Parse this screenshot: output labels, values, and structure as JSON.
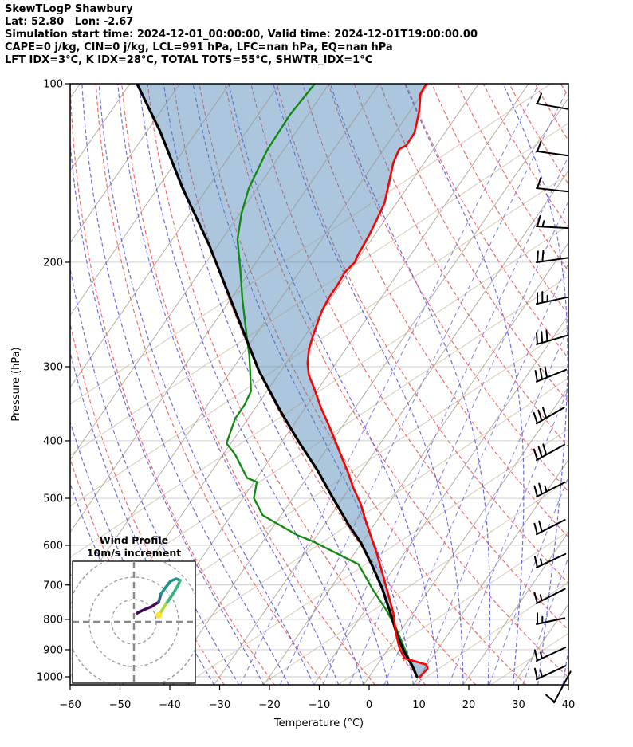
{
  "header": {
    "line1": "SkewTLogP Shawbury",
    "line2": "Lat: 52.80   Lon: -2.67",
    "line3": "Simulation start time: 2024-12-01_00:00:00, Valid time: 2024-12-01T19:00:00.00",
    "line4": "CAPE=0 j/kg, CIN=0 j/kg, LCL=991 hPa, LFC=nan hPa, EQ=nan hPa",
    "line5": "LFT IDX=3°C, K IDX=28°C, TOTAL TOTS=55°C, SHWTR_IDX=1°C"
  },
  "chart_data": {
    "type": "skewt-logp",
    "xlabel": "Temperature (°C)",
    "ylabel": "Pressure (hPa)",
    "x_ticks": [
      -60,
      -50,
      -40,
      -30,
      -20,
      -10,
      0,
      10,
      20,
      30,
      40
    ],
    "y_ticks": [
      100,
      200,
      300,
      400,
      500,
      600,
      700,
      800,
      900,
      1000
    ],
    "xlim": [
      -60,
      40
    ],
    "p_top": 100,
    "p_bottom": 1032,
    "skew_c_per_decade": 82,
    "temperature_profile": [
      [
        100,
        -70.5
      ],
      [
        104,
        -70.3
      ],
      [
        111,
        -68.2
      ],
      [
        121,
        -66.1
      ],
      [
        127,
        -66
      ],
      [
        129,
        -66.9
      ],
      [
        136,
        -66.2
      ],
      [
        150,
        -63.8
      ],
      [
        159,
        -62.4
      ],
      [
        169,
        -61.7
      ],
      [
        179,
        -61.1
      ],
      [
        196,
        -60.5
      ],
      [
        200,
        -60.2
      ],
      [
        208,
        -60.8
      ],
      [
        219,
        -60.5
      ],
      [
        229,
        -60.5
      ],
      [
        241,
        -60.1
      ],
      [
        253,
        -59.3
      ],
      [
        265,
        -58.5
      ],
      [
        280,
        -57.4
      ],
      [
        296,
        -55.7
      ],
      [
        310,
        -53.8
      ],
      [
        327,
        -50.8
      ],
      [
        351,
        -47
      ],
      [
        377,
        -42.8
      ],
      [
        401,
        -39.3
      ],
      [
        429,
        -35.5
      ],
      [
        453,
        -32.4
      ],
      [
        481,
        -29.2
      ],
      [
        510,
        -25.7
      ],
      [
        542,
        -22.6
      ],
      [
        577,
        -19.3
      ],
      [
        622,
        -15.3
      ],
      [
        721,
        -7.9
      ],
      [
        780,
        -4
      ],
      [
        845,
        -0.6
      ],
      [
        896,
        2.2
      ],
      [
        931,
        4.6
      ],
      [
        942,
        7.2
      ],
      [
        954,
        9.8
      ],
      [
        968,
        10.6
      ],
      [
        983,
        10.4
      ],
      [
        1000,
        10.2
      ]
    ],
    "dewpoint_profile": [
      [
        100,
        -92.9
      ],
      [
        113,
        -93.6
      ],
      [
        129,
        -93.3
      ],
      [
        150,
        -91.7
      ],
      [
        166,
        -89.6
      ],
      [
        183,
        -86.9
      ],
      [
        204,
        -82.5
      ],
      [
        231,
        -77.6
      ],
      [
        265,
        -71.9
      ],
      [
        287,
        -68.5
      ],
      [
        300,
        -66.8
      ],
      [
        330,
        -63.2
      ],
      [
        348,
        -62.6
      ],
      [
        367,
        -62.6
      ],
      [
        404,
        -60.9
      ],
      [
        422,
        -57.6
      ],
      [
        462,
        -52
      ],
      [
        469,
        -49.5
      ],
      [
        500,
        -47.8
      ],
      [
        534,
        -43.7
      ],
      [
        551,
        -39.8
      ],
      [
        577,
        -34
      ],
      [
        591,
        -30
      ],
      [
        646,
        -17.7
      ],
      [
        713,
        -11.3
      ],
      [
        768,
        -6.1
      ],
      [
        825,
        -1.5
      ],
      [
        871,
        1.6
      ],
      [
        931,
        5.4
      ],
      [
        974,
        8.1
      ],
      [
        1000,
        9.6
      ]
    ],
    "parcel_profile": [
      [
        100,
        -128.6
      ],
      [
        120,
        -117.5
      ],
      [
        150,
        -105
      ],
      [
        187,
        -91.8
      ],
      [
        238,
        -78.3
      ],
      [
        305,
        -64.4
      ],
      [
        356,
        -54.6
      ],
      [
        401,
        -46.7
      ],
      [
        448,
        -39
      ],
      [
        497,
        -32.3
      ],
      [
        552,
        -25.4
      ],
      [
        595,
        -20.1
      ],
      [
        650,
        -14.7
      ],
      [
        708,
        -9.7
      ],
      [
        780,
        -4.6
      ],
      [
        848,
        -0.3
      ],
      [
        908,
        3.6
      ],
      [
        959,
        7.2
      ],
      [
        1000,
        9.6
      ]
    ],
    "shading": {
      "between": [
        "parcel_profile",
        "temperature_profile"
      ]
    },
    "background": {
      "isotherms": {
        "start": -170,
        "end": 40,
        "step": 10
      },
      "dry_adiabats_theta_k": {
        "start": 213,
        "end": 453,
        "step": 10
      },
      "moist_adiabats_start_c": {
        "start": -40,
        "end": 40,
        "step": 5
      },
      "mixing_ratios_g_kg": [
        0.5,
        1,
        2,
        3,
        5,
        8,
        12,
        20,
        30
      ],
      "tan_lines": {
        "count": 16,
        "spacing": 96,
        "slope": 1.5,
        "start_x": -440
      }
    },
    "colors": {
      "temperature": "#ff0000",
      "dewpoint": "#0f8a0f",
      "parcel": "#000000",
      "shade": "rgba(70,130,180,0.45)",
      "isotherm": "#b9ada0",
      "pressure_line": "#c9c9c9",
      "dry_adiabat": "#f26b6b",
      "moist_adiabat": "#5555dd",
      "mixing_ratio": "#7d7de2",
      "tan_line": "#cbb79c",
      "barb": "#000000"
    },
    "wind_barbs": {
      "levels": [
        {
          "p": 108,
          "a": -10,
          "f": 1,
          "h": 0
        },
        {
          "p": 130,
          "a": -8,
          "f": 1,
          "h": 0
        },
        {
          "p": 150,
          "a": -6,
          "f": 1,
          "h": 0
        },
        {
          "p": 174,
          "a": -3,
          "f": 1,
          "h": 1
        },
        {
          "p": 200,
          "a": 8,
          "f": 2,
          "h": 0
        },
        {
          "p": 235,
          "a": 12,
          "f": 2,
          "h": 1
        },
        {
          "p": 275,
          "a": 16,
          "f": 3,
          "h": 0
        },
        {
          "p": 318,
          "a": 22,
          "f": 3,
          "h": 0
        },
        {
          "p": 374,
          "a": 30,
          "f": 3,
          "h": 0
        },
        {
          "p": 431,
          "a": 29,
          "f": 3,
          "h": 0
        },
        {
          "p": 497,
          "a": 27,
          "f": 2,
          "h": 1
        },
        {
          "p": 575,
          "a": 27,
          "f": 2,
          "h": 0
        },
        {
          "p": 654,
          "a": 25,
          "f": 1,
          "h": 1
        },
        {
          "p": 752,
          "a": 27,
          "f": 1,
          "h": 1
        },
        {
          "p": 815,
          "a": 12,
          "f": 1,
          "h": 1,
          "len": 36
        },
        {
          "p": 940,
          "a": 25,
          "f": 1,
          "h": 1
        },
        {
          "p": 1010,
          "a": 25,
          "f": 1,
          "h": 1
        },
        {
          "p": 1105,
          "a": 62,
          "f": 1,
          "h": 0,
          "dx": 22,
          "len": 44
        }
      ]
    },
    "hodograph": {
      "title_line1": "Wind Profile",
      "title_line2": "10m/s increment",
      "rings_ms": [
        10,
        20,
        30
      ],
      "trace_segments": [
        {
          "color": "#46085c",
          "points": [
            [
              1.4,
              3.9
            ],
            [
              3.6,
              5
            ],
            [
              7.9,
              6.8
            ],
            [
              11.1,
              8.9
            ]
          ]
        },
        {
          "color": "#365c8d",
          "points": [
            [
              11.1,
              8.9
            ],
            [
              12.1,
              12.5
            ]
          ]
        },
        {
          "color": "#21918c",
          "points": [
            [
              12.1,
              12.5
            ],
            [
              13.9,
              15
            ],
            [
              16.4,
              18.2
            ],
            [
              18.9,
              19.3
            ],
            [
              20.7,
              18.6
            ]
          ]
        },
        {
          "color": "#35b779",
          "points": [
            [
              20.7,
              18.6
            ],
            [
              19.6,
              16.1
            ],
            [
              16.8,
              11.4
            ],
            [
              14.3,
              7.9
            ]
          ]
        },
        {
          "color": "#a8db34",
          "points": [
            [
              14.3,
              7.9
            ],
            [
              12.5,
              5
            ],
            [
              11.4,
              3.2
            ]
          ]
        }
      ],
      "marker": {
        "color": "#fde725",
        "u": 11.1,
        "v": 2.9
      }
    }
  }
}
